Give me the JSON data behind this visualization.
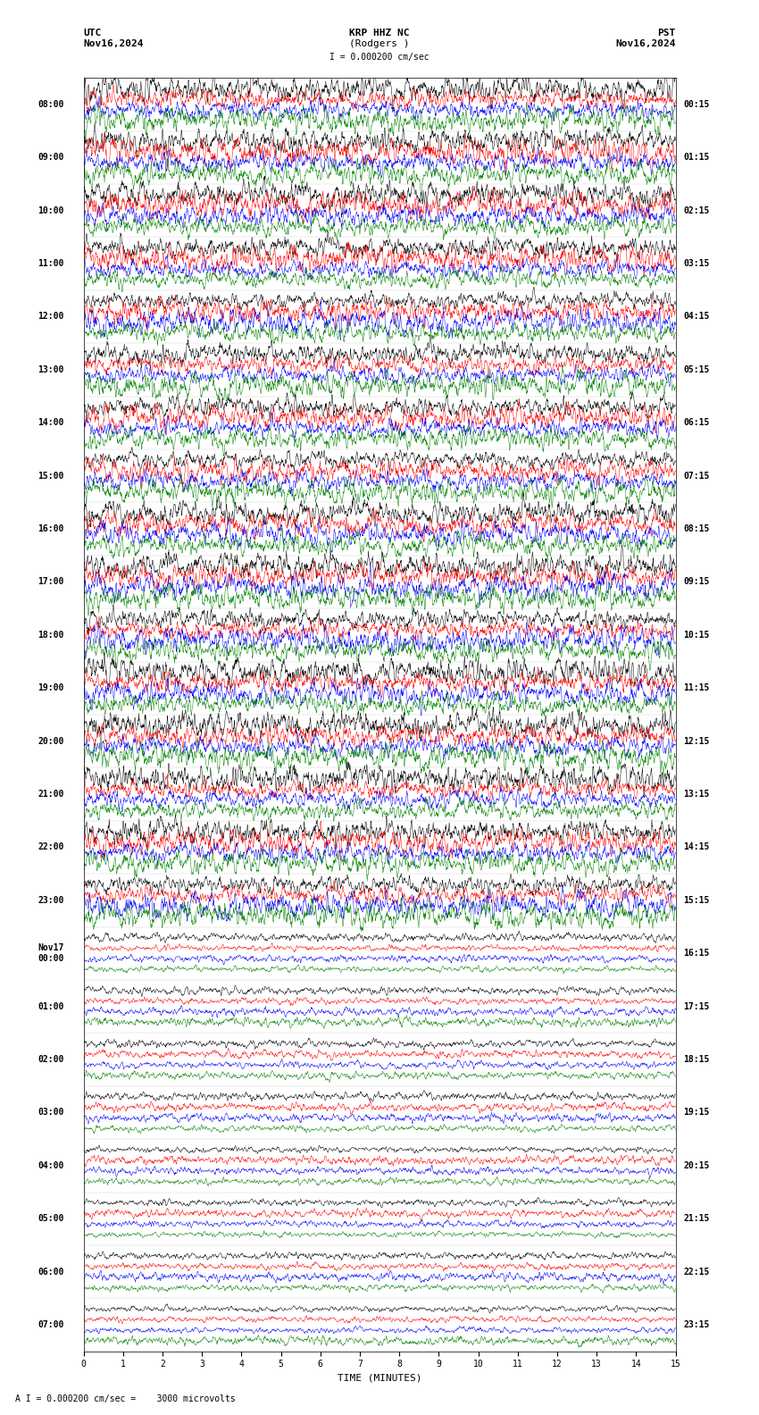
{
  "title_line1": "KRP HHZ NC",
  "title_line2": "(Rodgers )",
  "title_scale": "I = 0.000200 cm/sec",
  "label_utc": "UTC",
  "label_pst": "PST",
  "label_date_left": "Nov16,2024",
  "label_date_right": "Nov16,2024",
  "xlabel": "TIME (MINUTES)",
  "footer": "A I = 0.000200 cm/sec =    3000 microvolts",
  "left_times": [
    "08:00",
    "09:00",
    "10:00",
    "11:00",
    "12:00",
    "13:00",
    "14:00",
    "15:00",
    "16:00",
    "17:00",
    "18:00",
    "19:00",
    "20:00",
    "21:00",
    "22:00",
    "23:00",
    "Nov17\n00:00",
    "01:00",
    "02:00",
    "03:00",
    "04:00",
    "05:00",
    "06:00",
    "07:00"
  ],
  "right_times": [
    "00:15",
    "01:15",
    "02:15",
    "03:15",
    "04:15",
    "05:15",
    "06:15",
    "07:15",
    "08:15",
    "09:15",
    "10:15",
    "11:15",
    "12:15",
    "13:15",
    "14:15",
    "15:15",
    "16:15",
    "17:15",
    "18:15",
    "19:15",
    "20:15",
    "21:15",
    "22:15",
    "23:15"
  ],
  "num_rows": 24,
  "traces_per_row": 4,
  "colors": [
    "black",
    "red",
    "blue",
    "green"
  ],
  "bg_color": "white",
  "xmin": 0,
  "xmax": 15,
  "xticks": [
    0,
    1,
    2,
    3,
    4,
    5,
    6,
    7,
    8,
    9,
    10,
    11,
    12,
    13,
    14,
    15
  ],
  "fig_width": 8.5,
  "fig_height": 15.84,
  "dpi": 100,
  "noise_amp_high": 0.38,
  "noise_amp_low": 0.13,
  "title_fontsize": 8,
  "label_fontsize": 8,
  "tick_fontsize": 7,
  "row_label_fontsize": 7,
  "footer_fontsize": 7
}
